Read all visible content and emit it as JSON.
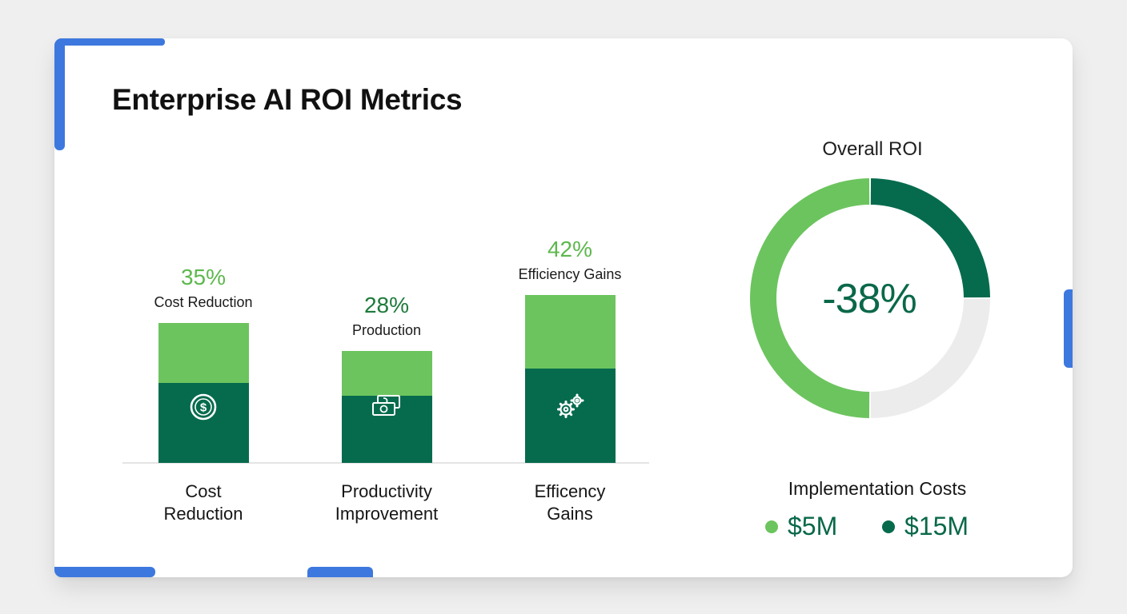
{
  "colors": {
    "light_green": "#6cc45e",
    "dark_green": "#066b4d",
    "pct_light": "#5db84d",
    "pct_dark": "#1d7a3a",
    "accent_blue": "#3d78de",
    "remaining_gray": "#ececec"
  },
  "title": "Enterprise AI ROI Metrics",
  "chart_data": [
    {
      "type": "bar",
      "stacked": true,
      "categories": [
        [
          "Cost",
          "Reduction"
        ],
        [
          "Productivity",
          "Improvement"
        ],
        [
          "Efficency",
          "Gains"
        ]
      ],
      "data_labels": [
        "35%",
        "28%",
        "42%"
      ],
      "data_sublabels": [
        "Cost Reduction",
        "Production",
        "Efficiency Gains"
      ],
      "values": [
        35,
        28,
        42
      ],
      "segment_top_share": [
        0.43,
        0.4,
        0.44
      ],
      "icons": [
        "dollar-coin-icon",
        "money-bills-icon",
        "gears-icon"
      ],
      "ylim": [
        0,
        50
      ]
    },
    {
      "type": "pie",
      "variant": "donut",
      "title": "Overall ROI",
      "center_label": "-38%",
      "slices": [
        {
          "share": 0.25,
          "color": "#066b4d"
        },
        {
          "share": 0.25,
          "color": "#ececec"
        },
        {
          "share": 0.5,
          "color": "#6cc45e"
        }
      ],
      "legend": {
        "title": "Implementation Costs",
        "items": [
          {
            "label": "$5M",
            "color": "#6cc45e"
          },
          {
            "label": "$15M",
            "color": "#066b4d"
          }
        ]
      }
    }
  ]
}
